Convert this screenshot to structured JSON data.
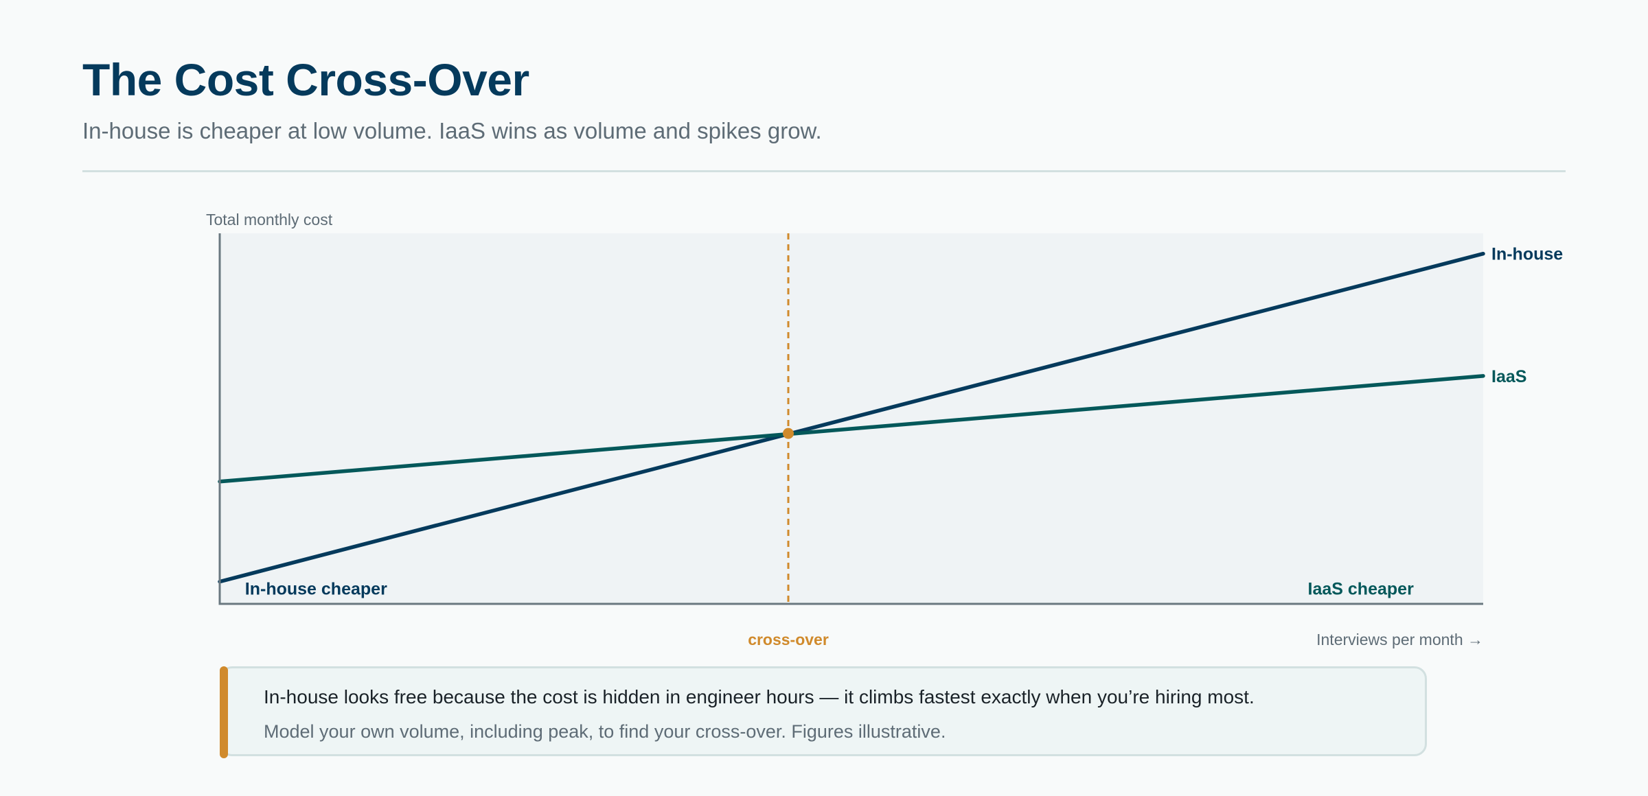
{
  "header": {
    "title": "The Cost Cross-Over",
    "subtitle": "In-house is cheaper at low volume. IaaS wins as volume and spikes grow."
  },
  "chart_data": {
    "type": "line",
    "title": "The Cost Cross-Over",
    "subtitle": "In-house is cheaper at low volume. IaaS wins as volume and spikes grow.",
    "ylabel": "Total monthly cost",
    "xlabel": "Interviews per month →",
    "xlim": [
      0,
      100
    ],
    "ylim": [
      0,
      100
    ],
    "grid": false,
    "legend": "direct labels at line ends",
    "series": [
      {
        "name": "In-house",
        "color": "#053a5c",
        "x": [
          0,
          100
        ],
        "y": [
          6,
          94.5
        ]
      },
      {
        "name": "IaaS",
        "color": "#04585a",
        "x": [
          0,
          100
        ],
        "y": [
          33,
          61.5
        ]
      }
    ],
    "crossover": {
      "x": 45,
      "y": 46,
      "label": "cross-over",
      "color": "#d08a2c"
    },
    "annotations": [
      {
        "text": "In-house cheaper",
        "x": 2,
        "y": 4,
        "color": "#053a5c",
        "anchor": "start"
      },
      {
        "text": "IaaS cheaper",
        "x": 94.5,
        "y": 4,
        "color": "#04585a",
        "anchor": "end"
      }
    ],
    "colors": {
      "plot_background": "#eff3f5",
      "axis": "#6a7880",
      "axis_label": "#5e6c76"
    }
  },
  "callout": {
    "main": "In-house looks free because the cost is hidden in engineer hours — it climbs fastest exactly when you’re hiring most.",
    "note": "Model your own volume, including peak, to find your cross-over. Figures illustrative.",
    "accent_color": "#d08a2c"
  }
}
